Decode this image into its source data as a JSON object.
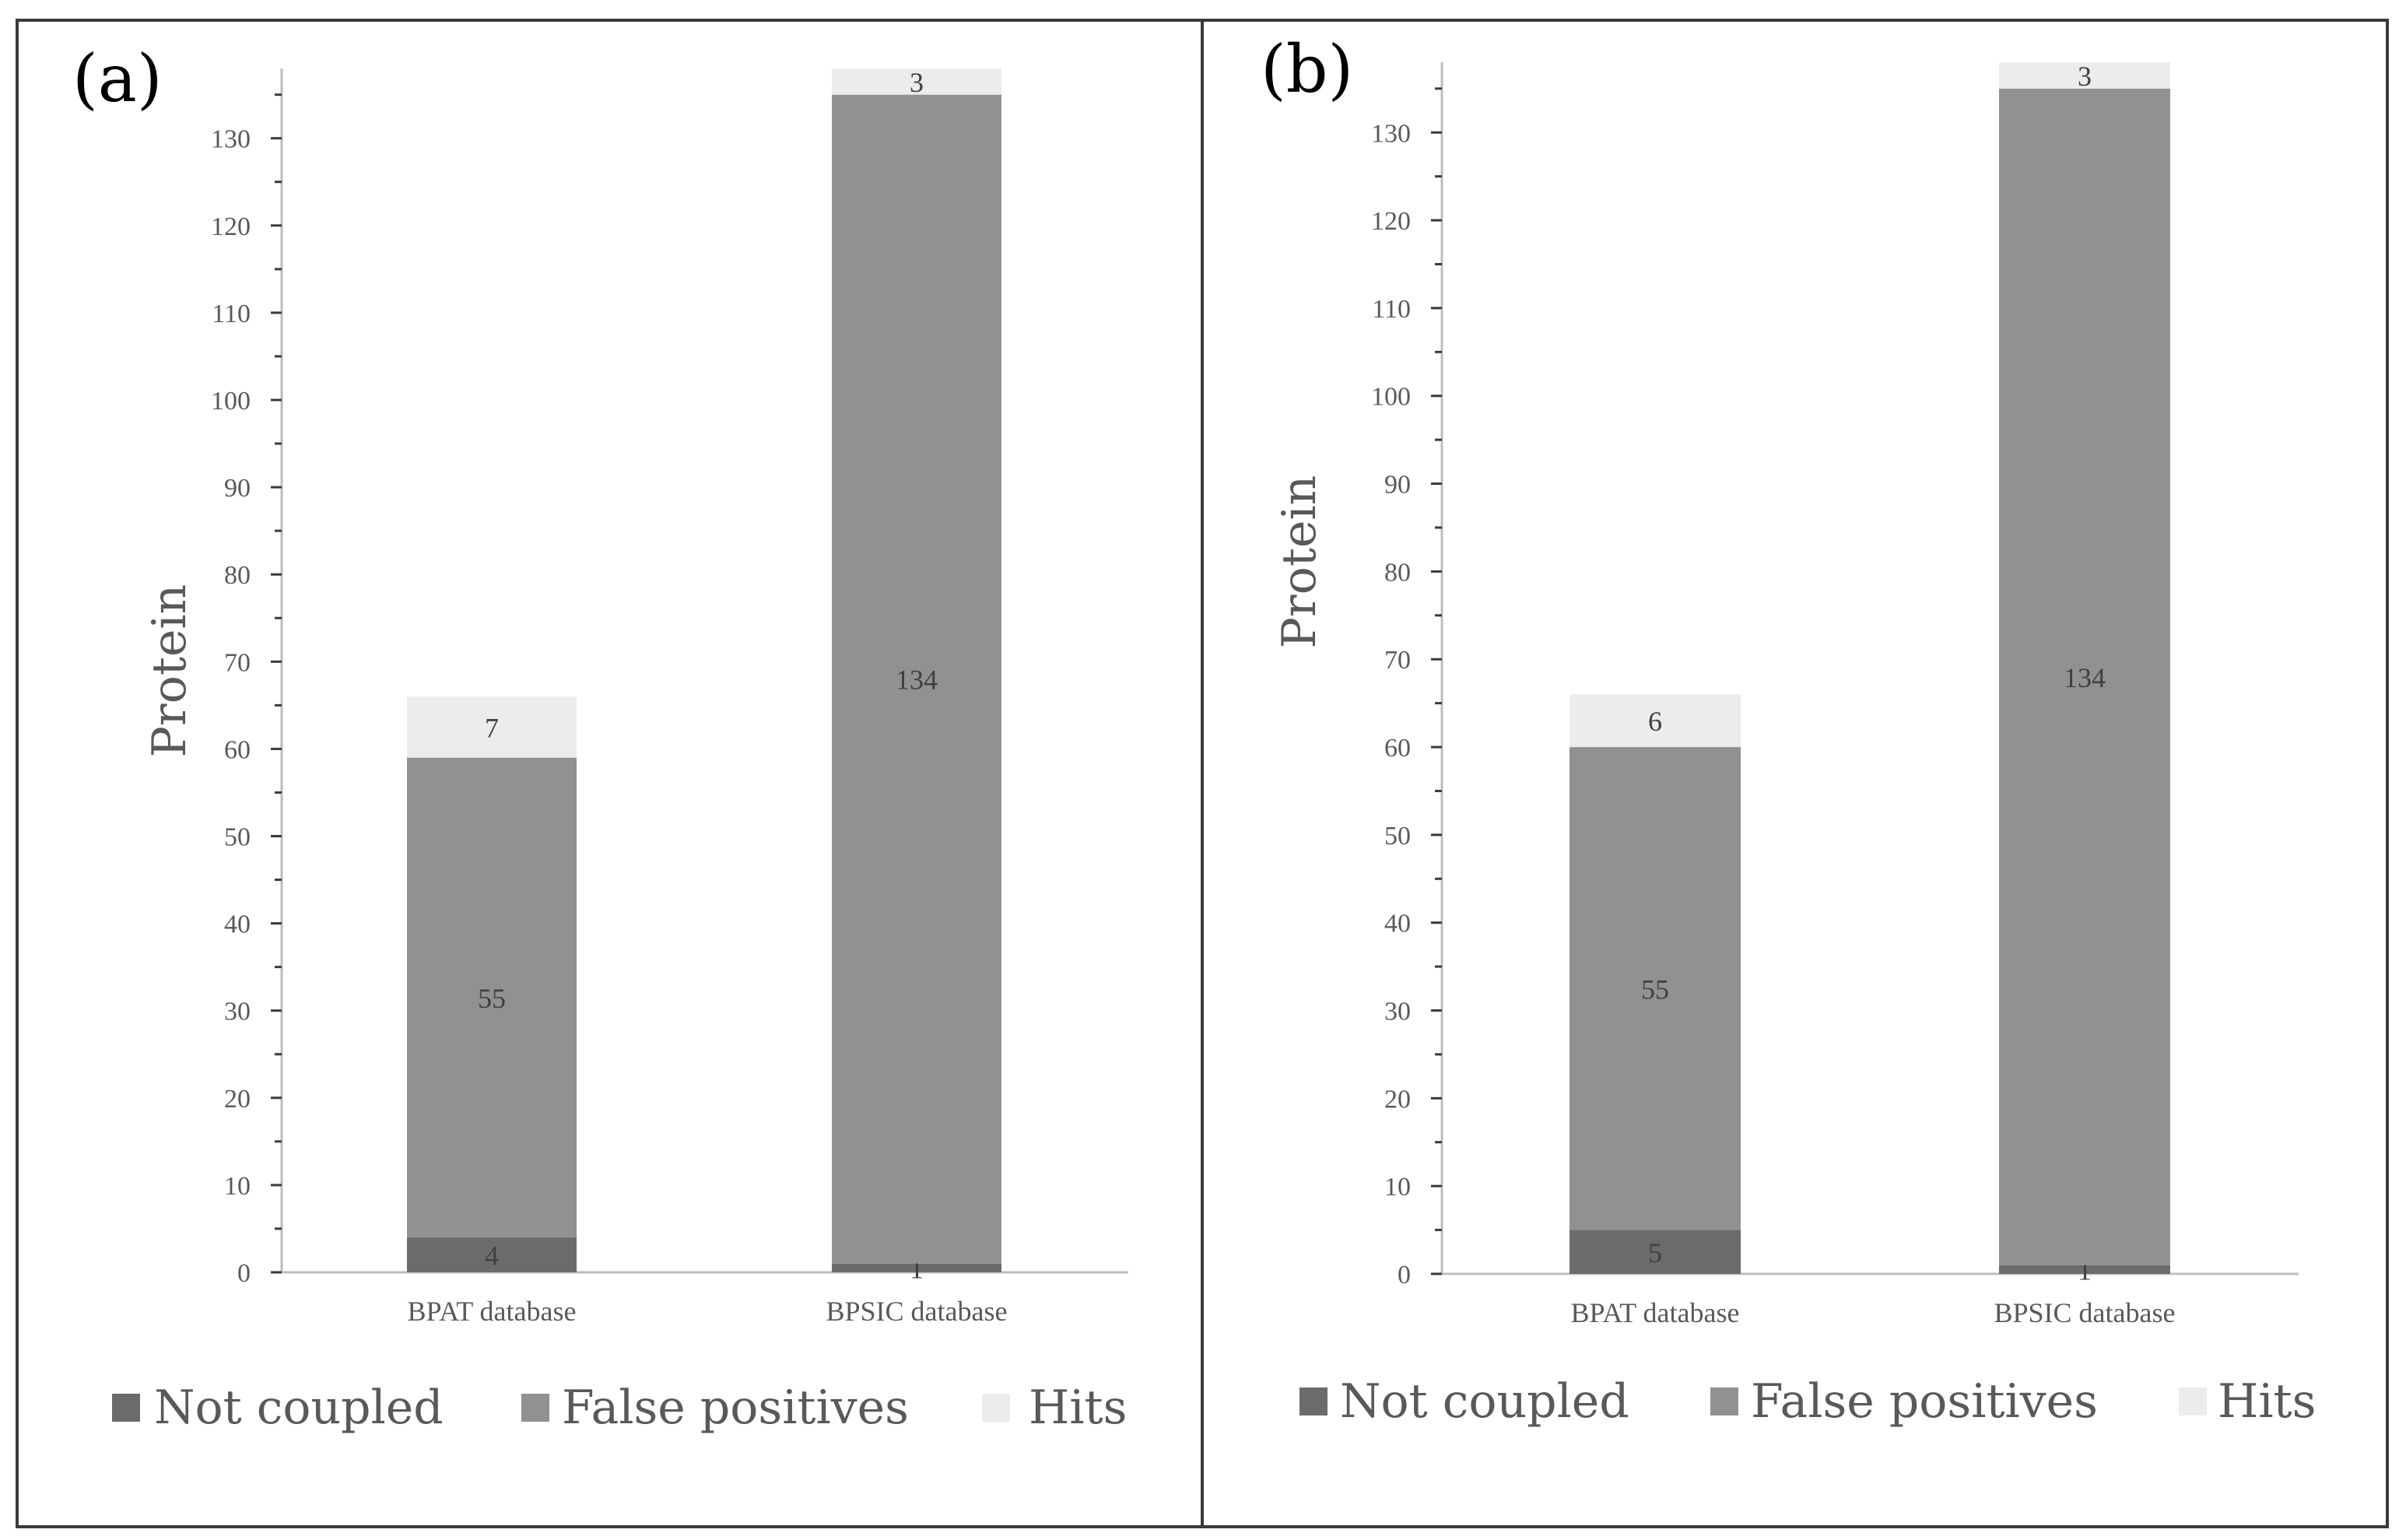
{
  "chart_data": [
    {
      "type": "bar",
      "stacked": true,
      "panel_label": "(a)",
      "categories": [
        "BPAT database",
        "BPSIC database"
      ],
      "ylabel": "Protein",
      "xlabel": "",
      "ylim": [
        0,
        138
      ],
      "yticks": [
        0,
        10,
        20,
        30,
        40,
        50,
        60,
        70,
        80,
        90,
        100,
        110,
        120,
        130
      ],
      "legend_position": "bottom",
      "series": [
        {
          "name": "Not coupled",
          "values": [
            4,
            1
          ],
          "color": "#6b6b6b"
        },
        {
          "name": "False positives",
          "values": [
            55,
            134
          ],
          "color": "#919191"
        },
        {
          "name": "Hits",
          "values": [
            7,
            3
          ],
          "color": "#ececec"
        }
      ]
    },
    {
      "type": "bar",
      "stacked": true,
      "panel_label": "(b)",
      "categories": [
        "BPAT database",
        "BPSIC database"
      ],
      "ylabel": "Protein",
      "xlabel": "",
      "ylim": [
        0,
        138
      ],
      "yticks": [
        0,
        10,
        20,
        30,
        40,
        50,
        60,
        70,
        80,
        90,
        100,
        110,
        120,
        130
      ],
      "legend_position": "bottom",
      "series": [
        {
          "name": "Not coupled",
          "values": [
            5,
            1
          ],
          "color": "#6b6b6b"
        },
        {
          "name": "False positives",
          "values": [
            55,
            134
          ],
          "color": "#919191"
        },
        {
          "name": "Hits",
          "values": [
            6,
            3
          ],
          "color": "#ececec"
        }
      ]
    }
  ]
}
